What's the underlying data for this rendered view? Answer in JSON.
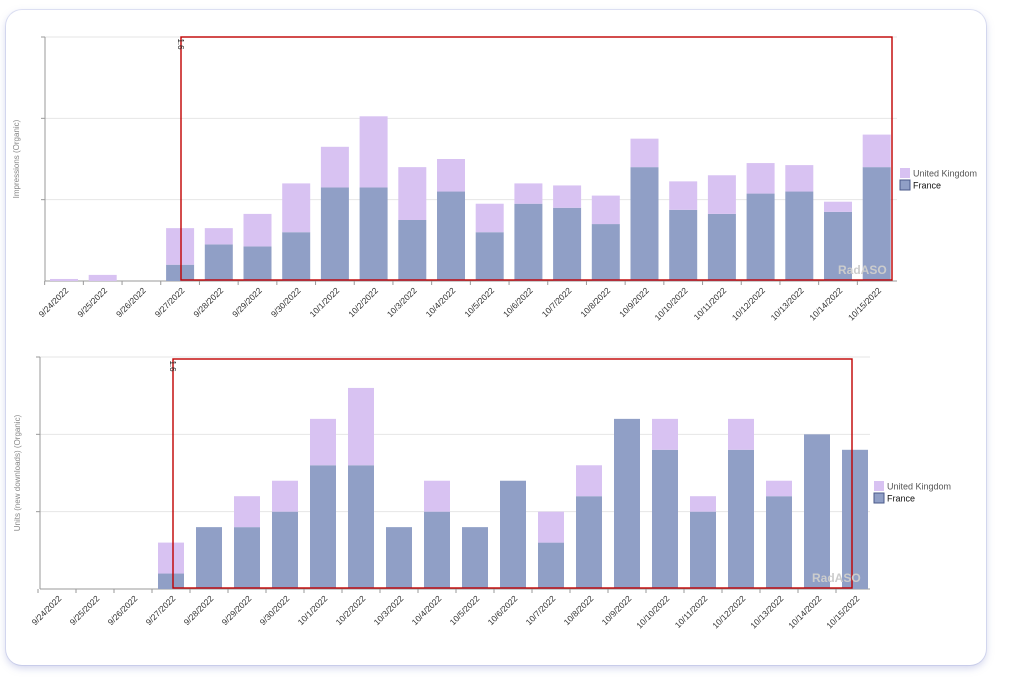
{
  "colors": {
    "uk": "#d8c2f2",
    "france": "#909fc6",
    "selection": "#c00000",
    "axis": "#999999",
    "grid": "#e6e6e6"
  },
  "chart_data": [
    {
      "type": "bar",
      "stacked": true,
      "ylabel": "Impressions (Organic)",
      "categories": [
        "9/24/2022",
        "9/25/2022",
        "9/26/2022",
        "9/27/2022",
        "9/28/2022",
        "9/29/2022",
        "9/30/2022",
        "10/1/2022",
        "10/2/2022",
        "10/3/2022",
        "10/4/2022",
        "10/5/2022",
        "10/6/2022",
        "10/7/2022",
        "10/8/2022",
        "10/9/2022",
        "10/10/2022",
        "10/11/2022",
        "10/12/2022",
        "10/13/2022",
        "10/14/2022",
        "10/15/2022"
      ],
      "series": [
        {
          "name": "France",
          "values": [
            0,
            0,
            0,
            0.4,
            0.9,
            0.85,
            1.2,
            2.3,
            2.3,
            1.5,
            2.2,
            1.2,
            1.9,
            1.8,
            1.4,
            2.8,
            1.75,
            1.65,
            2.15,
            2.2,
            1.7,
            2.8
          ]
        },
        {
          "name": "United Kingdom",
          "values": [
            0.05,
            0.15,
            0,
            0.9,
            0.4,
            0.8,
            1.2,
            1.0,
            1.75,
            1.3,
            0.8,
            0.7,
            0.5,
            0.55,
            0.7,
            0.7,
            0.7,
            0.95,
            0.75,
            0.65,
            0.25,
            0.8
          ]
        }
      ],
      "ylim": [
        0,
        6
      ],
      "legend_position": "right",
      "selection_label": "1.6",
      "watermark": "RadASO"
    },
    {
      "type": "bar",
      "stacked": true,
      "ylabel": "Units (new downloads) (Organic)",
      "categories": [
        "9/24/2022",
        "9/25/2022",
        "9/26/2022",
        "9/27/2022",
        "9/28/2022",
        "9/29/2022",
        "9/30/2022",
        "10/1/2022",
        "10/2/2022",
        "10/3/2022",
        "10/4/2022",
        "10/5/2022",
        "10/6/2022",
        "10/7/2022",
        "10/8/2022",
        "10/9/2022",
        "10/10/2022",
        "10/11/2022",
        "10/12/2022",
        "10/13/2022",
        "10/14/2022",
        "10/15/2022"
      ],
      "series": [
        {
          "name": "France",
          "values": [
            0,
            0,
            0,
            1,
            4,
            4,
            5,
            8,
            8,
            4,
            5,
            4,
            7,
            3,
            6,
            11,
            9,
            5,
            9,
            6,
            10,
            9
          ]
        },
        {
          "name": "United Kingdom",
          "values": [
            0,
            0,
            0,
            2,
            0,
            2,
            2,
            3,
            5,
            0,
            2,
            0,
            0,
            2,
            2,
            0,
            2,
            1,
            2,
            1,
            0,
            0
          ]
        }
      ],
      "ylim": [
        0,
        15
      ],
      "legend_position": "right",
      "selection_label": "1.6",
      "watermark": "RadASO"
    }
  ]
}
